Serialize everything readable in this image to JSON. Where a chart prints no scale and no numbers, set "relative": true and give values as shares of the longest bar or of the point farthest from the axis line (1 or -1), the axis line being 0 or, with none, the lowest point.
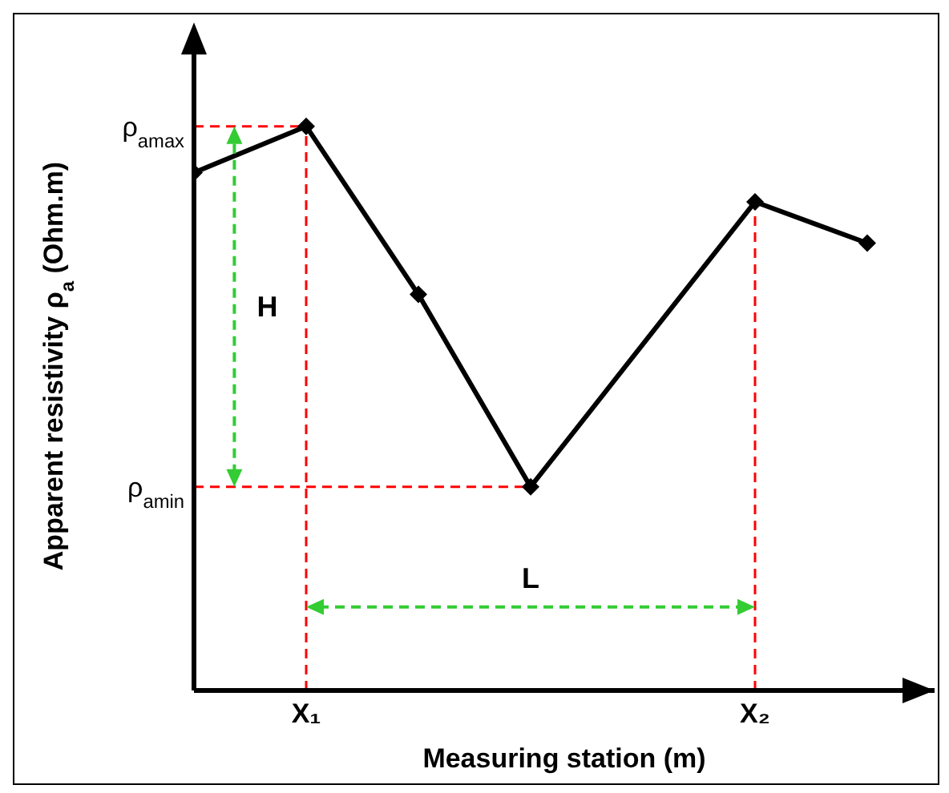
{
  "chart_data": {
    "type": "line",
    "relative": true,
    "xlabel": "Measuring station (m)",
    "ylabel": "Apparent resistivity ρ$_{a}$ (Ohm.m)",
    "categories": [
      null,
      "X₁",
      null,
      null,
      null,
      "X₂",
      null
    ],
    "series": [
      {
        "color": "#000000",
        "values": [
          0.918,
          1,
          0.702,
          0.361,
          null,
          0.866,
          0.793
        ]
      }
    ],
    "marker": "diamond",
    "line_style": "solid",
    "ref_lines": [
      {
        "axis": "y",
        "value": 1,
        "label": "ρ$_{amax}$",
        "color": "#ff0000",
        "line_style": "dashed"
      },
      {
        "axis": "y",
        "value": 0.361,
        "label": "ρ$_{amin}$",
        "color": "#ff0000",
        "line_style": "dashed"
      },
      {
        "axis": "x",
        "value": "X₁",
        "color": "#ff0000",
        "line_style": "dashed"
      },
      {
        "axis": "x",
        "value": "X₂",
        "color": "#ff0000",
        "line_style": "dashed"
      }
    ],
    "annotations": [
      "H",
      "L"
    ]
  }
}
